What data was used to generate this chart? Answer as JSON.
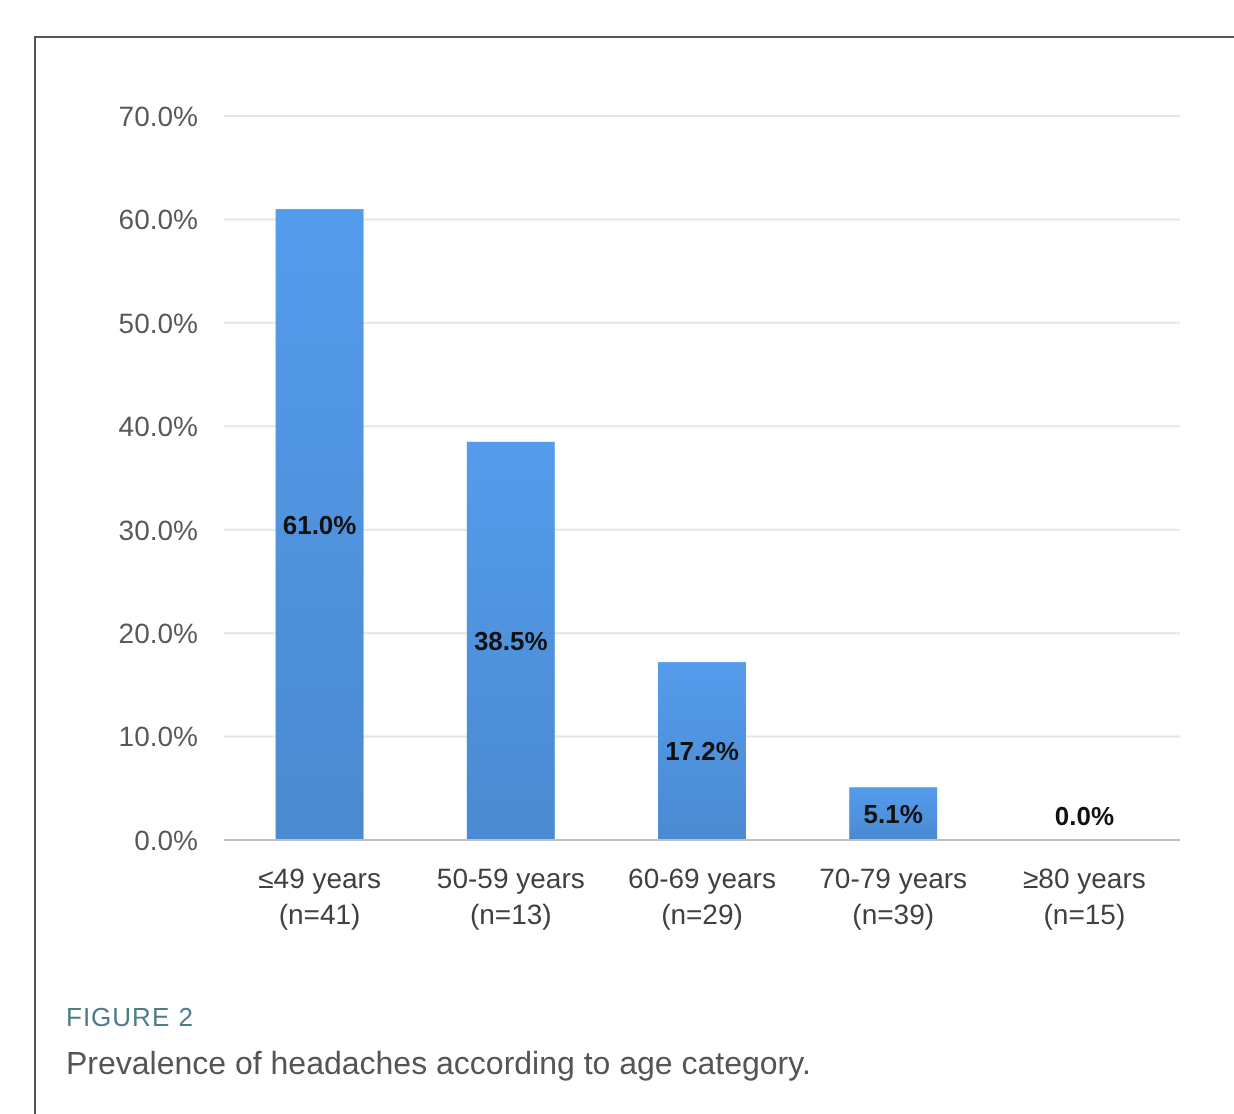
{
  "chart_data": {
    "type": "bar",
    "categories": [
      "≤49 years\n(n=41)",
      "50-59 years\n(n=13)",
      "60-69 years\n(n=29)",
      "70-79 years\n(n=39)",
      "≥80 years\n(n=15)"
    ],
    "values": [
      61.0,
      38.5,
      17.2,
      5.1,
      0.0
    ],
    "value_labels": [
      "61.0%",
      "38.5%",
      "17.2%",
      "5.1%",
      "0.0%"
    ],
    "color": "#4a8ad0",
    "ylim": [
      0,
      70
    ],
    "yticks": [
      {
        "value": 0,
        "label": "0.0%"
      },
      {
        "value": 10,
        "label": "10.0%"
      },
      {
        "value": 20,
        "label": "20.0%"
      },
      {
        "value": 30,
        "label": "30.0%"
      },
      {
        "value": 40,
        "label": "40.0%"
      },
      {
        "value": 50,
        "label": "50.0%"
      },
      {
        "value": 60,
        "label": "60.0%"
      },
      {
        "value": 70,
        "label": "70.0%"
      }
    ],
    "grid": "y",
    "annotations": [
      "FIGURE 2",
      "Prevalence of headaches according to age category."
    ]
  }
}
